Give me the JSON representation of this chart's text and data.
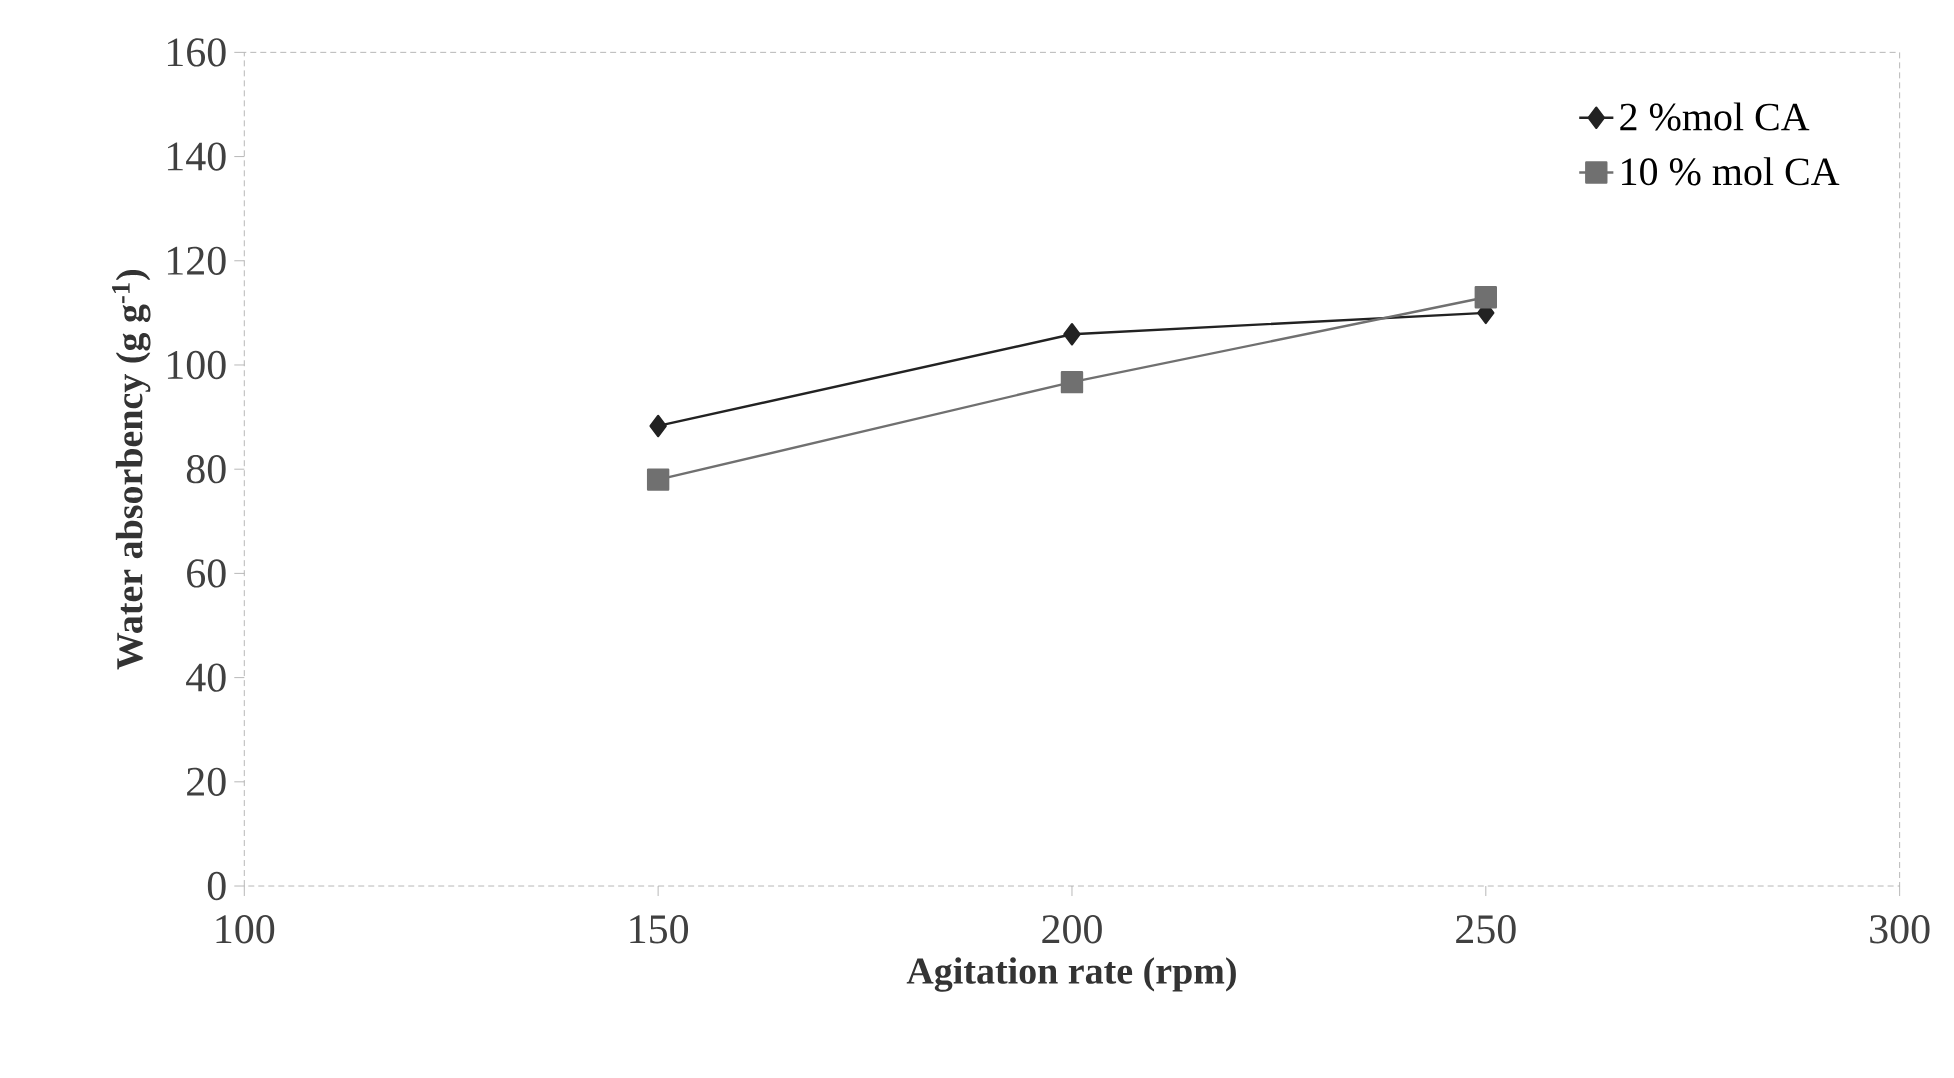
{
  "chart_data": {
    "type": "line",
    "xlabel": "Agitation rate (rpm)",
    "ylabel": "Water absorbency (g g$^{-1}$)",
    "x": [
      150,
      200,
      250
    ],
    "series": [
      {
        "name": "2 %mol CA",
        "color": "#222222",
        "marker": "diamond",
        "values": [
          88.3,
          105.9,
          110
        ]
      },
      {
        "name": "10 % mol CA",
        "color": "#707070",
        "marker": "square",
        "values": [
          78,
          96.7,
          113
        ]
      }
    ],
    "xlim": [
      100,
      300
    ],
    "xticks": [
      100,
      150,
      200,
      250,
      300
    ],
    "ylim": [
      0,
      160
    ],
    "yticks": [
      0,
      20,
      40,
      60,
      80,
      100,
      120,
      140,
      160
    ],
    "grid": false,
    "legend": "top right",
    "line_style": "solid"
  }
}
